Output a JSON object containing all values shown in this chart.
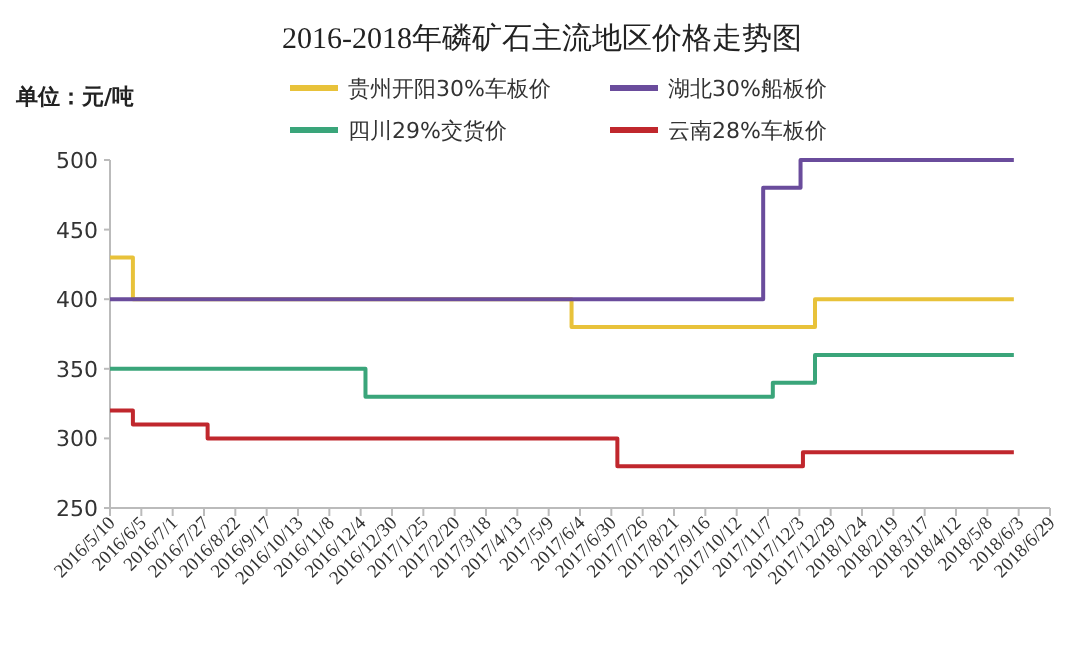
{
  "chart_data": {
    "type": "step",
    "title": "2016-2018年磷矿石主流地区价格走势图",
    "ylabel": "单位：元/吨",
    "legend": "top",
    "grid": false,
    "ylim": [
      250,
      500
    ],
    "yticks": [
      250,
      300,
      350,
      400,
      450,
      500
    ],
    "xlim": [
      "2016-05-10",
      "2018-06-29"
    ],
    "xticks": [
      {
        "value": "2016-05-10",
        "label": "2016/5/10"
      },
      {
        "value": "2016-06-05",
        "label": "2016/6/5"
      },
      {
        "value": "2016-07-01",
        "label": "2016/7/1"
      },
      {
        "value": "2016-07-27",
        "label": "2016/7/27"
      },
      {
        "value": "2016-08-22",
        "label": "2016/8/22"
      },
      {
        "value": "2016-09-17",
        "label": "2016/9/17"
      },
      {
        "value": "2016-10-13",
        "label": "2016/10/13"
      },
      {
        "value": "2016-11-08",
        "label": "2016/11/8"
      },
      {
        "value": "2016-12-04",
        "label": "2016/12/4"
      },
      {
        "value": "2016-12-30",
        "label": "2016/12/30"
      },
      {
        "value": "2017-01-25",
        "label": "2017/1/25"
      },
      {
        "value": "2017-02-20",
        "label": "2017/2/20"
      },
      {
        "value": "2017-03-18",
        "label": "2017/3/18"
      },
      {
        "value": "2017-04-13",
        "label": "2017/4/13"
      },
      {
        "value": "2017-05-09",
        "label": "2017/5/9"
      },
      {
        "value": "2017-06-04",
        "label": "2017/6/4"
      },
      {
        "value": "2017-06-30",
        "label": "2017/6/30"
      },
      {
        "value": "2017-07-26",
        "label": "2017/7/26"
      },
      {
        "value": "2017-08-21",
        "label": "2017/8/21"
      },
      {
        "value": "2017-09-16",
        "label": "2017/9/16"
      },
      {
        "value": "2017-10-12",
        "label": "2017/10/12"
      },
      {
        "value": "2017-11-07",
        "label": "2017/11/7"
      },
      {
        "value": "2017-12-03",
        "label": "2017/12/3"
      },
      {
        "value": "2017-12-29",
        "label": "2017/12/29"
      },
      {
        "value": "2018-01-24",
        "label": "2018/1/24"
      },
      {
        "value": "2018-02-19",
        "label": "2018/2/19"
      },
      {
        "value": "2018-03-17",
        "label": "2018/3/17"
      },
      {
        "value": "2018-04-12",
        "label": "2018/4/12"
      },
      {
        "value": "2018-05-08",
        "label": "2018/5/8"
      },
      {
        "value": "2018-06-03",
        "label": "2018/6/3"
      },
      {
        "value": "2018-06-29",
        "label": "2018/6/29"
      }
    ],
    "series": [
      {
        "name": "贵州开阳30%车板价",
        "color": "#e8c23a",
        "x": [
          "2016-05-10",
          "2016-05-29",
          "2017-05-28",
          "2017-12-16",
          "2018-05-30"
        ],
        "values": [
          430,
          400,
          380,
          400,
          400
        ]
      },
      {
        "name": "湖北30%船板价",
        "color": "#6a4c9c",
        "x": [
          "2016-05-10",
          "2017-11-03",
          "2017-12-04",
          "2018-05-30"
        ],
        "values": [
          400,
          480,
          500,
          500
        ]
      },
      {
        "name": "四川29%交货价",
        "color": "#3aa57a",
        "x": [
          "2016-05-10",
          "2016-12-08",
          "2017-11-11",
          "2017-12-16",
          "2018-05-30"
        ],
        "values": [
          350,
          330,
          340,
          360,
          360
        ]
      },
      {
        "name": "云南28%车板价",
        "color": "#c0272d",
        "x": [
          "2016-05-10",
          "2016-05-29",
          "2016-07-30",
          "2017-07-05",
          "2017-12-06",
          "2018-05-30"
        ],
        "values": [
          320,
          310,
          300,
          280,
          290,
          290
        ]
      }
    ]
  }
}
